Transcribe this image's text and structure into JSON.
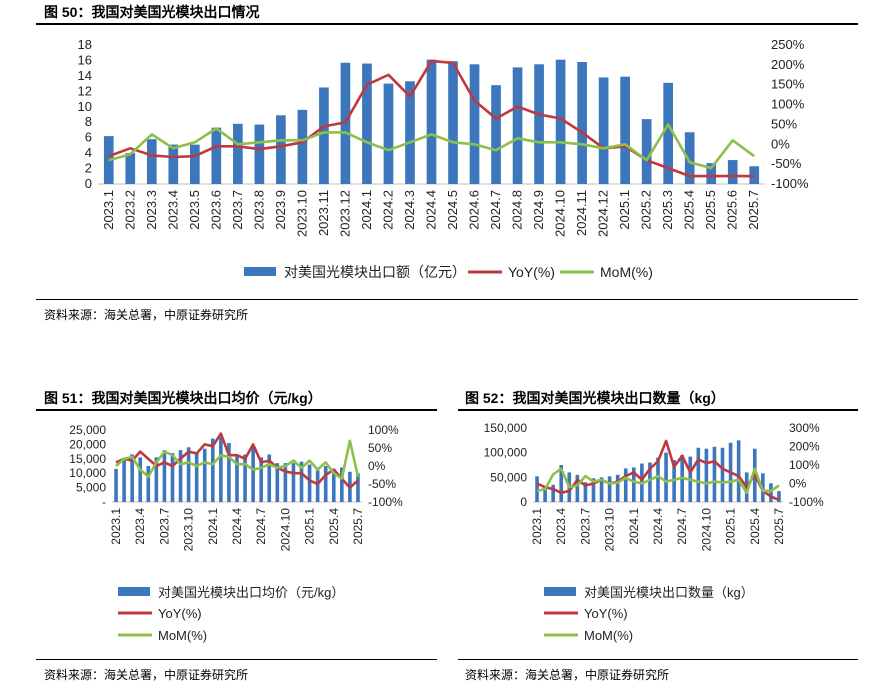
{
  "charts": {
    "c50": {
      "title": "图 50：我国对美国光模块出口情况",
      "source": "资料来源：海关总署，中原证券研究所"
    },
    "c51": {
      "title": "图 51：我国对美国光模块出口均价（元/kg）",
      "source": "资料来源：海关总署，中原证券研究所"
    },
    "c52": {
      "title": "图 52：我国对美国光模块出口数量（kg）",
      "source": "资料来源：海关总署，中原证券研究所"
    }
  },
  "chart_data": [
    {
      "id": "c50",
      "type": "bar",
      "title": "图 50：我国对美国光模块出口情况",
      "categories": [
        "2023.1",
        "2023.2",
        "2023.3",
        "2023.4",
        "2023.5",
        "2023.6",
        "2023.7",
        "2023.8",
        "2023.9",
        "2023.10",
        "2023.11",
        "2023.12",
        "2024.1",
        "2024.2",
        "2024.3",
        "2024.4",
        "2024.5",
        "2024.6",
        "2024.7",
        "2024.8",
        "2024.9",
        "2024.10",
        "2024.11",
        "2024.12",
        "2025.1",
        "2025.2",
        "2025.3",
        "2025.4",
        "2025.5",
        "2025.6",
        "2025.7"
      ],
      "tick_labels": [
        "2023.1",
        "2023.2",
        "2023.3",
        "2023.4",
        "2023.5",
        "2023.6",
        "2023.7",
        "2023.8",
        "2023.9",
        "2023.10",
        "2023.11",
        "2023.12",
        "2024.1",
        "2024.2",
        "2024.3",
        "2024.4",
        "2024.5",
        "2024.6",
        "2024.7",
        "2024.8",
        "2024.9",
        "2024.10",
        "2024.11",
        "2024.12",
        "2025.1",
        "2025.2",
        "2025.3",
        "2025.4",
        "2025.5",
        "2025.6",
        "2025.7"
      ],
      "series": [
        {
          "name": "对美国光模块出口额（亿元）",
          "kind": "bar",
          "axis": "left",
          "color": "#3c77bd",
          "values": [
            6.2,
            4.0,
            5.8,
            5.1,
            5.1,
            7.3,
            7.8,
            7.7,
            8.9,
            9.6,
            12.5,
            15.7,
            15.6,
            13.0,
            13.3,
            16.1,
            15.9,
            15.5,
            12.8,
            15.1,
            15.5,
            16.1,
            15.8,
            13.8,
            13.9,
            8.4,
            13.1,
            6.7,
            2.7,
            3.1,
            2.3
          ]
        },
        {
          "name": "YoY(%)",
          "kind": "line",
          "axis": "right",
          "color": "#c0383f",
          "values": [
            -30,
            -10,
            -28,
            -32,
            -30,
            -5,
            -5,
            -12,
            -5,
            5,
            45,
            55,
            150,
            175,
            120,
            210,
            205,
            110,
            65,
            95,
            75,
            65,
            30,
            -10,
            -5,
            -40,
            -60,
            -80,
            -80,
            -80,
            -80
          ]
        },
        {
          "name": "MoM(%)",
          "kind": "line",
          "axis": "right",
          "color": "#8cc04a",
          "values": [
            -40,
            -25,
            25,
            -10,
            5,
            40,
            0,
            5,
            10,
            10,
            30,
            30,
            5,
            -15,
            5,
            25,
            5,
            0,
            -15,
            15,
            5,
            5,
            0,
            -10,
            0,
            -40,
            50,
            -45,
            -60,
            10,
            -30
          ]
        }
      ],
      "left_axis": {
        "min": 0,
        "max": 18,
        "ticks": [
          0,
          2,
          4,
          6,
          8,
          10,
          12,
          14,
          16,
          18
        ]
      },
      "right_axis": {
        "min": -100,
        "max": 250,
        "ticks": [
          "-100%",
          "-50%",
          "0%",
          "50%",
          "100%",
          "150%",
          "200%",
          "250%"
        ]
      },
      "legend": [
        "对美国光模块出口额（亿元）",
        "YoY(%)",
        "MoM(%)"
      ],
      "legend_position": "bottom"
    },
    {
      "id": "c51",
      "type": "bar",
      "title": "图 51：我国对美国光模块出口均价（元/kg）",
      "categories": [
        "2023.1",
        "2023.2",
        "2023.3",
        "2023.4",
        "2023.5",
        "2023.6",
        "2023.7",
        "2023.8",
        "2023.9",
        "2023.10",
        "2023.11",
        "2023.12",
        "2024.1",
        "2024.2",
        "2024.3",
        "2024.4",
        "2024.5",
        "2024.6",
        "2024.7",
        "2024.8",
        "2024.9",
        "2024.10",
        "2024.11",
        "2024.12",
        "2025.1",
        "2025.2",
        "2025.3",
        "2025.4",
        "2025.5",
        "2025.6",
        "2025.7"
      ],
      "tick_labels": [
        "2023.1",
        "2023.4",
        "2023.7",
        "2023.10",
        "2024.1",
        "2024.4",
        "2024.7",
        "2024.10",
        "2025.1",
        "2025.4",
        "2025.7"
      ],
      "series": [
        {
          "name": "对美国光模块出口均价（元/kg）",
          "kind": "bar",
          "axis": "left",
          "color": "#3c77bd",
          "values": [
            11500,
            14500,
            16500,
            15500,
            12500,
            15500,
            18000,
            17000,
            18000,
            19000,
            17000,
            18500,
            22000,
            22500,
            20500,
            16000,
            16500,
            19500,
            15500,
            16500,
            13500,
            13500,
            13500,
            14000,
            13000,
            11000,
            12500,
            11500,
            12000,
            10500,
            10000
          ]
        },
        {
          "name": "YoY(%)",
          "kind": "line",
          "axis": "right",
          "color": "#c0383f",
          "values": [
            10,
            20,
            15,
            40,
            20,
            0,
            10,
            0,
            20,
            40,
            35,
            60,
            55,
            90,
            30,
            30,
            20,
            60,
            10,
            15,
            -5,
            -15,
            -20,
            -20,
            -40,
            -50,
            -25,
            -10,
            -35,
            -60,
            -40
          ]
        },
        {
          "name": "MoM(%)",
          "kind": "line",
          "axis": "right",
          "color": "#8cc04a",
          "values": [
            0,
            20,
            25,
            -10,
            -30,
            10,
            40,
            30,
            5,
            10,
            0,
            10,
            5,
            30,
            25,
            5,
            5,
            -10,
            -5,
            5,
            -5,
            0,
            15,
            -5,
            15,
            -10,
            10,
            -20,
            -35,
            70,
            -30
          ]
        }
      ],
      "left_axis": {
        "min": 0,
        "max": 25000,
        "ticks": [
          "-",
          "5,000",
          "10,000",
          "15,000",
          "20,000",
          "25,000"
        ]
      },
      "right_axis": {
        "min": -100,
        "max": 100,
        "ticks": [
          "-100%",
          "-50%",
          "0%",
          "50%",
          "100%"
        ]
      },
      "legend": [
        "对美国光模块出口均价（元/kg）",
        "YoY(%)",
        "MoM(%)"
      ],
      "legend_position": "bottom"
    },
    {
      "id": "c52",
      "type": "bar",
      "title": "图 52：我国对美国光模块出口数量（kg）",
      "categories": [
        "2023.1",
        "2023.2",
        "2023.3",
        "2023.4",
        "2023.5",
        "2023.6",
        "2023.7",
        "2023.8",
        "2023.9",
        "2023.10",
        "2023.11",
        "2023.12",
        "2024.1",
        "2024.2",
        "2024.3",
        "2024.4",
        "2024.5",
        "2024.6",
        "2024.7",
        "2024.8",
        "2024.9",
        "2024.10",
        "2024.11",
        "2024.12",
        "2025.1",
        "2025.2",
        "2025.3",
        "2025.4",
        "2025.5",
        "2025.6",
        "2025.7"
      ],
      "tick_labels": [
        "2023.1",
        "2023.4",
        "2023.7",
        "2023.10",
        "2024.1",
        "2024.4",
        "2024.7",
        "2024.10",
        "2025.1",
        "2025.4",
        "2025.7"
      ],
      "series": [
        {
          "name": "对美国光模块出口数量（kg）",
          "kind": "bar",
          "axis": "left",
          "color": "#3c77bd",
          "values": [
            52000,
            30000,
            35000,
            75000,
            60000,
            55000,
            40000,
            48000,
            50000,
            52000,
            55000,
            68000,
            70000,
            78000,
            80000,
            90000,
            100000,
            85000,
            95000,
            92000,
            110000,
            108000,
            112000,
            110000,
            120000,
            125000,
            60000,
            108000,
            58000,
            38000,
            22000
          ]
        },
        {
          "name": "YoY(%)",
          "kind": "line",
          "axis": "right",
          "color": "#c0383f",
          "values": [
            0,
            -20,
            -30,
            -50,
            -40,
            20,
            -10,
            0,
            20,
            0,
            10,
            40,
            60,
            20,
            80,
            120,
            230,
            90,
            150,
            60,
            130,
            110,
            120,
            80,
            60,
            40,
            -20,
            50,
            -40,
            -70,
            -90
          ]
        },
        {
          "name": "MoM(%)",
          "kind": "line",
          "axis": "right",
          "color": "#8cc04a",
          "values": [
            -40,
            -30,
            50,
            80,
            -20,
            -10,
            40,
            10,
            20,
            0,
            5,
            30,
            10,
            0,
            20,
            40,
            10,
            20,
            30,
            20,
            10,
            0,
            10,
            5,
            10,
            20,
            -50,
            80,
            -40,
            -40,
            -10
          ]
        }
      ],
      "left_axis": {
        "min": 0,
        "max": 150000,
        "ticks": [
          "0",
          "50,000",
          "100,000",
          "150,000"
        ]
      },
      "right_axis": {
        "min": -100,
        "max": 300,
        "ticks": [
          "-100%",
          "0%",
          "100%",
          "200%",
          "300%"
        ]
      },
      "legend": [
        "对美国光模块出口数量（kg）",
        "YoY(%)",
        "MoM(%)"
      ],
      "legend_position": "bottom"
    }
  ]
}
